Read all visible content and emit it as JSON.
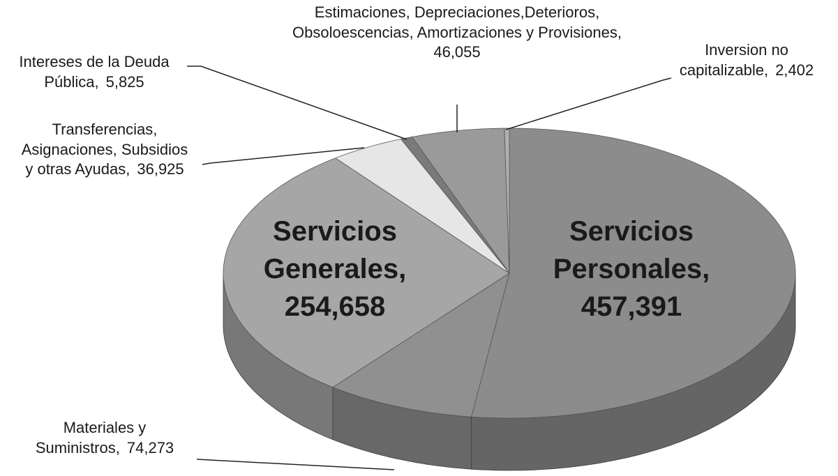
{
  "chart_data": {
    "type": "pie",
    "categories": [
      "Servicios\nPersonales,",
      "Materiales y\nSuministros,",
      "Servicios\nGenerales,",
      "Transferencias,\nAsignaciones, Subsidios\ny otras Ayudas,",
      "Intereses de la Deuda\nPública,",
      "Estimaciones, Depreciaciones,Deterioros,\nObsoloescencias, Amortizaciones y Provisiones,",
      "Inversion no\ncapitalizable,"
    ],
    "values": [
      457391,
      74273,
      254658,
      36925,
      5825,
      46055,
      2402
    ],
    "value_labels": [
      "457,391",
      "74,273",
      "254,658",
      "36,925",
      "5,825",
      "46,055",
      "2,402"
    ],
    "colors": [
      "#8c8c8c",
      "#909090",
      "#a6a6a6",
      "#e6e6e6",
      "#7a7a7a",
      "#9a9a9a",
      "#b0b0b0"
    ]
  }
}
